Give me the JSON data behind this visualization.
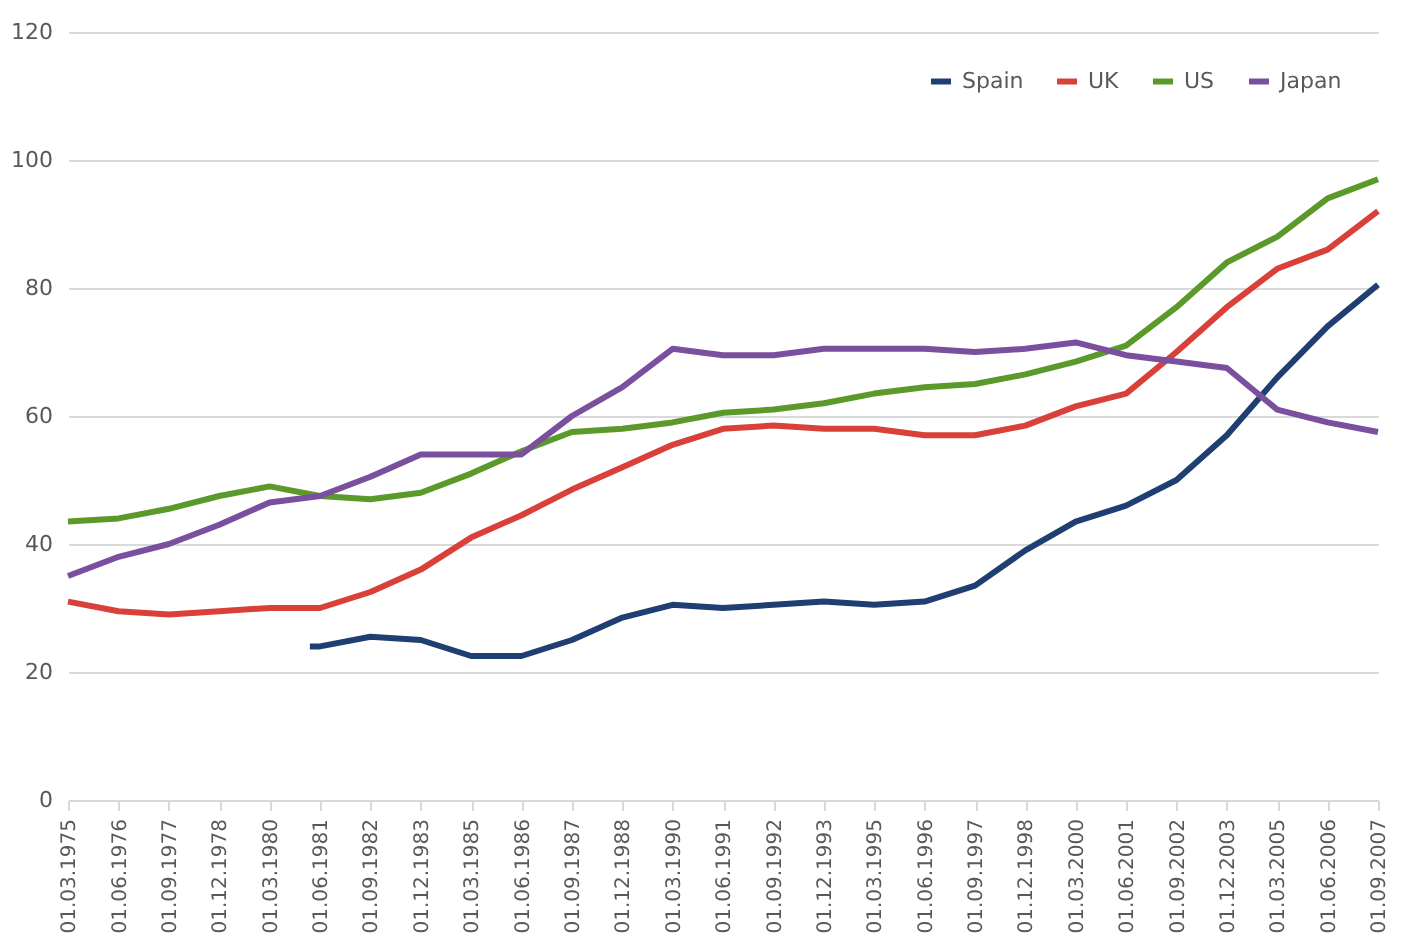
{
  "chart_data": {
    "type": "line",
    "x": [
      "1975-03-01",
      "1976-06-01",
      "1977-09-01",
      "1978-12-01",
      "1980-03-01",
      "1981-06-01",
      "1982-09-01",
      "1983-12-01",
      "1985-03-01",
      "1986-06-01",
      "1987-09-01",
      "1988-12-01",
      "1990-03-01",
      "1991-06-01",
      "1992-09-01",
      "1993-12-01",
      "1995-03-01",
      "1996-06-01",
      "1997-09-01",
      "1998-12-01",
      "2000-03-01",
      "2001-06-01",
      "2002-09-01",
      "2003-12-01",
      "2005-03-01",
      "2006-06-01",
      "2007-09-01"
    ],
    "series": [
      {
        "name": "Spain",
        "color": "#1f3f73",
        "x": [
          "1981-03-01",
          "1981-06-01",
          "1982-09-01",
          "1983-12-01",
          "1985-03-01",
          "1986-06-01",
          "1987-09-01",
          "1988-12-01",
          "1990-03-01",
          "1991-06-01",
          "1992-09-01",
          "1993-12-01",
          "1995-03-01",
          "1996-06-01",
          "1997-09-01",
          "1998-12-01",
          "2000-03-01",
          "2001-06-01",
          "2002-09-01",
          "2003-12-01",
          "2005-03-01",
          "2006-06-01",
          "2007-09-01"
        ],
        "values": [
          24,
          24,
          25.5,
          25,
          22.5,
          22.5,
          25,
          28.5,
          30.5,
          30,
          30.5,
          31,
          30.5,
          31,
          33.5,
          39,
          43.5,
          46,
          50,
          57,
          66,
          74,
          80.5
        ]
      },
      {
        "name": "UK",
        "color": "#d9403a",
        "values": [
          31,
          29.5,
          29,
          29.5,
          30,
          30,
          32.5,
          36,
          41,
          44.5,
          48.5,
          52,
          55.5,
          58,
          58.5,
          58,
          58,
          57,
          57,
          58.5,
          61.5,
          63.5,
          70,
          77,
          83,
          86,
          92
        ]
      },
      {
        "name": "US",
        "color": "#5b9a2a",
        "values": [
          43.5,
          44,
          45.5,
          47.5,
          49,
          47.5,
          47,
          48,
          51,
          54.5,
          57.5,
          58,
          59,
          60.5,
          61,
          62,
          63.5,
          64.5,
          65,
          66.5,
          68.5,
          71,
          77,
          84,
          88,
          94,
          97
        ]
      },
      {
        "name": "Japan",
        "color": "#7a4f9e",
        "values": [
          35,
          38,
          40,
          43,
          46.5,
          47.5,
          50.5,
          54,
          54,
          54,
          60,
          64.5,
          70.5,
          69.5,
          69.5,
          70.5,
          70.5,
          70.5,
          70,
          70.5,
          71.5,
          69.5,
          68.5,
          67.5,
          61,
          59,
          57.5
        ]
      }
    ],
    "xlim": [
      "1975-03-01",
      "2007-09-01"
    ],
    "xticks": [
      {
        "value": "1975-03-01",
        "label": "01.03.1975"
      },
      {
        "value": "1976-06-01",
        "label": "01.06.1976"
      },
      {
        "value": "1977-09-01",
        "label": "01.09.1977"
      },
      {
        "value": "1978-12-01",
        "label": "01.12.1978"
      },
      {
        "value": "1980-03-01",
        "label": "01.03.1980"
      },
      {
        "value": "1981-06-01",
        "label": "01.06.1981"
      },
      {
        "value": "1982-09-01",
        "label": "01.09.1982"
      },
      {
        "value": "1983-12-01",
        "label": "01.12.1983"
      },
      {
        "value": "1985-03-01",
        "label": "01.03.1985"
      },
      {
        "value": "1986-06-01",
        "label": "01.06.1986"
      },
      {
        "value": "1987-09-01",
        "label": "01.09.1987"
      },
      {
        "value": "1988-12-01",
        "label": "01.12.1988"
      },
      {
        "value": "1990-03-01",
        "label": "01.03.1990"
      },
      {
        "value": "1991-06-01",
        "label": "01.06.1991"
      },
      {
        "value": "1992-09-01",
        "label": "01.09.1992"
      },
      {
        "value": "1993-12-01",
        "label": "01.12.1993"
      },
      {
        "value": "1995-03-01",
        "label": "01.03.1995"
      },
      {
        "value": "1996-06-01",
        "label": "01.06.1996"
      },
      {
        "value": "1997-09-01",
        "label": "01.09.1997"
      },
      {
        "value": "1998-12-01",
        "label": "01.12.1998"
      },
      {
        "value": "2000-03-01",
        "label": "01.03.2000"
      },
      {
        "value": "2001-06-01",
        "label": "01.06.2001"
      },
      {
        "value": "2002-09-01",
        "label": "01.09.2002"
      },
      {
        "value": "2003-12-01",
        "label": "01.12.2003"
      },
      {
        "value": "2005-03-01",
        "label": "01.03.2005"
      },
      {
        "value": "2006-06-01",
        "label": "01.06.2006"
      },
      {
        "value": "2007-09-01",
        "label": "01.09.2007"
      }
    ],
    "ylim": [
      0,
      120
    ],
    "yticks": [
      0,
      20,
      40,
      60,
      80,
      100,
      120
    ],
    "grid": "y",
    "legend": "top right",
    "marker": "none",
    "line_style": "solid"
  }
}
